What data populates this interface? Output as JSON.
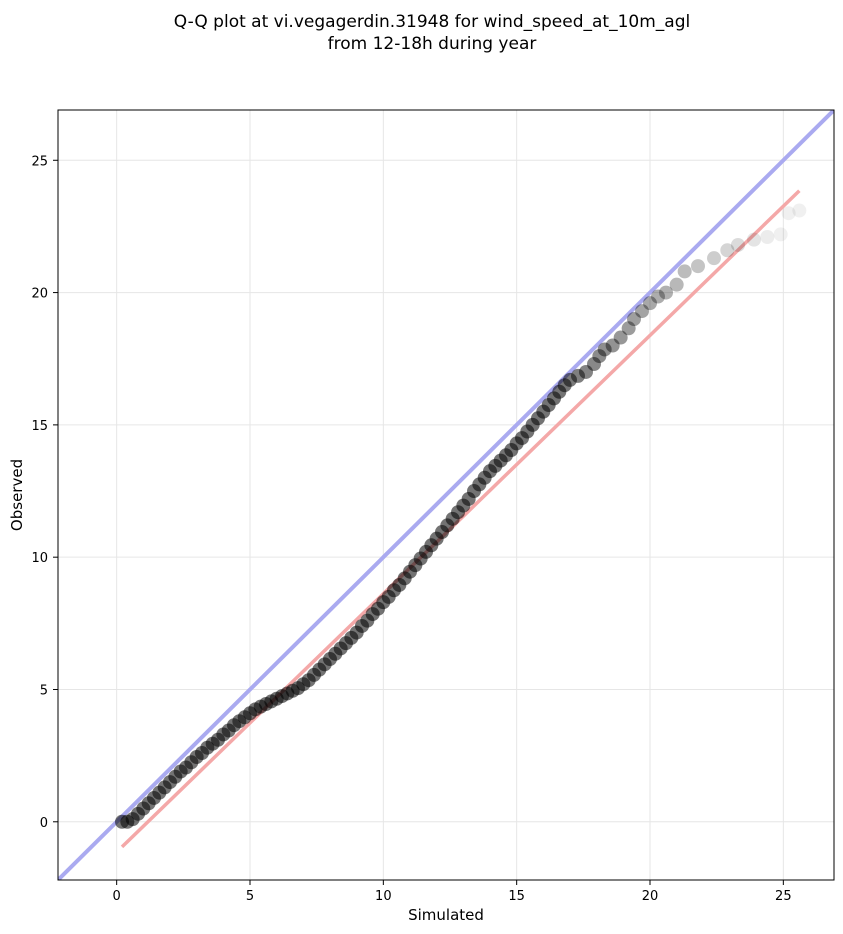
{
  "chart_data": {
    "type": "scatter",
    "title_line1": "Q-Q plot at vi.vegagerdin.31948 for wind_speed_at_10m_agl",
    "title_line2": "from 12-18h during year",
    "xlabel": "Simulated",
    "ylabel": "Observed",
    "xlim": [
      -2.2,
      26.9
    ],
    "ylim": [
      -2.2,
      26.9
    ],
    "xticks": [
      0,
      5,
      10,
      15,
      20,
      25
    ],
    "yticks": [
      0,
      5,
      10,
      15,
      20,
      25
    ],
    "xtick_labels": [
      "0",
      "5",
      "10",
      "15",
      "20",
      "25"
    ],
    "ytick_labels": [
      "0",
      "5",
      "10",
      "15",
      "20",
      "25"
    ],
    "grid": true,
    "colors": {
      "points": "#000000",
      "identity_line": "#aaaaf0",
      "fit_line": "#f4a8a8"
    },
    "identity_line": {
      "x": [
        -2.2,
        26.9
      ],
      "y": [
        -2.2,
        26.9
      ]
    },
    "fit_line": {
      "x": [
        0.2,
        25.6
      ],
      "y": [
        -0.95,
        23.85
      ]
    },
    "points": [
      [
        0.2,
        0.0
      ],
      [
        0.4,
        0.0
      ],
      [
        0.6,
        0.1
      ],
      [
        0.8,
        0.3
      ],
      [
        1.0,
        0.5
      ],
      [
        1.2,
        0.7
      ],
      [
        1.4,
        0.9
      ],
      [
        1.6,
        1.1
      ],
      [
        1.8,
        1.3
      ],
      [
        2.0,
        1.5
      ],
      [
        2.2,
        1.7
      ],
      [
        2.4,
        1.9
      ],
      [
        2.6,
        2.05
      ],
      [
        2.8,
        2.25
      ],
      [
        3.0,
        2.45
      ],
      [
        3.2,
        2.6
      ],
      [
        3.4,
        2.8
      ],
      [
        3.6,
        2.95
      ],
      [
        3.8,
        3.1
      ],
      [
        4.0,
        3.3
      ],
      [
        4.2,
        3.45
      ],
      [
        4.4,
        3.65
      ],
      [
        4.6,
        3.8
      ],
      [
        4.8,
        3.95
      ],
      [
        5.0,
        4.1
      ],
      [
        5.2,
        4.25
      ],
      [
        5.4,
        4.35
      ],
      [
        5.6,
        4.45
      ],
      [
        5.8,
        4.55
      ],
      [
        6.0,
        4.65
      ],
      [
        6.2,
        4.75
      ],
      [
        6.4,
        4.85
      ],
      [
        6.6,
        4.95
      ],
      [
        6.8,
        5.05
      ],
      [
        7.0,
        5.2
      ],
      [
        7.2,
        5.35
      ],
      [
        7.4,
        5.55
      ],
      [
        7.6,
        5.75
      ],
      [
        7.8,
        5.95
      ],
      [
        8.0,
        6.15
      ],
      [
        8.2,
        6.35
      ],
      [
        8.4,
        6.55
      ],
      [
        8.6,
        6.75
      ],
      [
        8.8,
        6.95
      ],
      [
        9.0,
        7.15
      ],
      [
        9.2,
        7.4
      ],
      [
        9.4,
        7.6
      ],
      [
        9.6,
        7.85
      ],
      [
        9.8,
        8.05
      ],
      [
        10.0,
        8.3
      ],
      [
        10.2,
        8.5
      ],
      [
        10.4,
        8.75
      ],
      [
        10.6,
        8.95
      ],
      [
        10.8,
        9.2
      ],
      [
        11.0,
        9.45
      ],
      [
        11.2,
        9.7
      ],
      [
        11.4,
        9.95
      ],
      [
        11.6,
        10.2
      ],
      [
        11.8,
        10.45
      ],
      [
        12.0,
        10.7
      ],
      [
        12.2,
        10.95
      ],
      [
        12.4,
        11.2
      ],
      [
        12.6,
        11.45
      ],
      [
        12.8,
        11.7
      ],
      [
        13.0,
        11.95
      ],
      [
        13.2,
        12.2
      ],
      [
        13.4,
        12.5
      ],
      [
        13.6,
        12.75
      ],
      [
        13.8,
        13.0
      ],
      [
        14.0,
        13.25
      ],
      [
        14.2,
        13.45
      ],
      [
        14.4,
        13.65
      ],
      [
        14.6,
        13.85
      ],
      [
        14.8,
        14.05
      ],
      [
        15.0,
        14.3
      ],
      [
        15.2,
        14.5
      ],
      [
        15.4,
        14.75
      ],
      [
        15.6,
        15.0
      ],
      [
        15.8,
        15.25
      ],
      [
        16.0,
        15.5
      ],
      [
        16.2,
        15.75
      ],
      [
        16.4,
        16.0
      ],
      [
        16.6,
        16.25
      ],
      [
        16.8,
        16.5
      ],
      [
        17.0,
        16.7
      ],
      [
        17.3,
        16.85
      ],
      [
        17.6,
        17.0
      ],
      [
        17.9,
        17.3
      ],
      [
        18.1,
        17.6
      ],
      [
        18.3,
        17.85
      ],
      [
        18.6,
        18.0
      ],
      [
        18.9,
        18.3
      ],
      [
        19.2,
        18.65
      ],
      [
        19.4,
        19.0
      ],
      [
        19.7,
        19.3
      ],
      [
        20.0,
        19.6
      ],
      [
        20.3,
        19.85
      ],
      [
        20.6,
        20.0
      ],
      [
        21.0,
        20.3
      ],
      [
        21.3,
        20.8
      ],
      [
        21.8,
        21.0
      ],
      [
        22.4,
        21.3
      ],
      [
        22.9,
        21.6
      ],
      [
        23.3,
        21.8
      ],
      [
        23.9,
        22.0
      ],
      [
        24.4,
        22.1
      ],
      [
        24.9,
        22.2
      ],
      [
        25.2,
        23.0
      ],
      [
        25.6,
        23.1
      ]
    ]
  }
}
